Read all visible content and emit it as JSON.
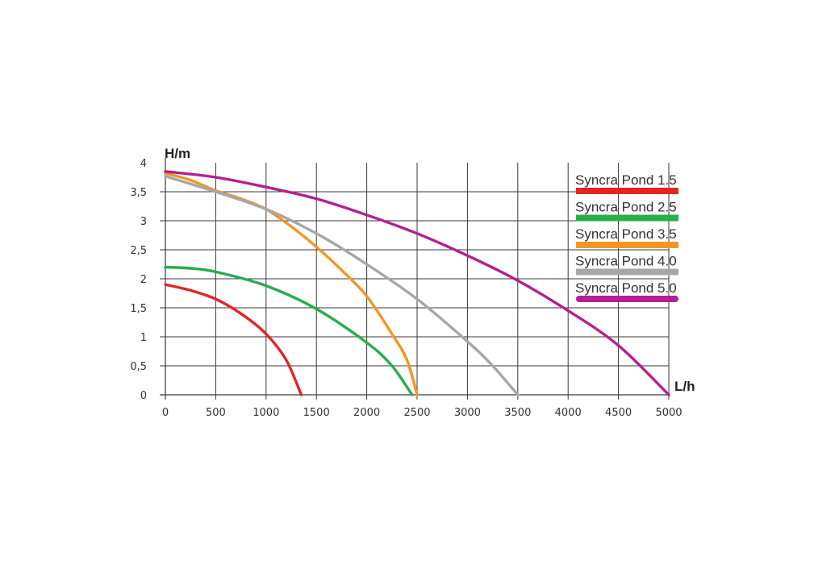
{
  "chart_data": {
    "type": "line",
    "ylabel": "H/m",
    "xlabel": "L/h",
    "xlim": [
      0,
      5000
    ],
    "ylim": [
      0,
      4
    ],
    "grid": true,
    "legend_position": "top-right",
    "x_ticks": [
      "0",
      "500",
      "1000",
      "1500",
      "2000",
      "2500",
      "3000",
      "3500",
      "4000",
      "4500",
      "5000"
    ],
    "y_ticks": [
      {
        "value": 0,
        "label": "0"
      },
      {
        "value": 0.5,
        "label": "0,5"
      },
      {
        "value": 1,
        "label": "1"
      },
      {
        "value": 1.5,
        "label": "1,5"
      },
      {
        "value": 2,
        "label": "2"
      },
      {
        "value": 2.5,
        "label": "2,5"
      },
      {
        "value": 3,
        "label": "3"
      },
      {
        "value": 3.5,
        "label": "3,5"
      },
      {
        "value": 4,
        "label": "4"
      }
    ],
    "series": [
      {
        "name": "Syncra Pond 1.5",
        "color": "#e32427",
        "points": [
          [
            0,
            1.9
          ],
          [
            250,
            1.8
          ],
          [
            500,
            1.65
          ],
          [
            750,
            1.4
          ],
          [
            1000,
            1.05
          ],
          [
            1200,
            0.6
          ],
          [
            1350,
            0.0
          ]
        ]
      },
      {
        "name": "Syncra Pond 2.5",
        "color": "#27ae4a",
        "points": [
          [
            0,
            2.2
          ],
          [
            250,
            2.18
          ],
          [
            500,
            2.12
          ],
          [
            1000,
            1.88
          ],
          [
            1500,
            1.48
          ],
          [
            2000,
            0.9
          ],
          [
            2250,
            0.5
          ],
          [
            2450,
            0.0
          ]
        ]
      },
      {
        "name": "Syncra Pond 3.5",
        "color": "#f39623",
        "points": [
          [
            0,
            3.82
          ],
          [
            250,
            3.7
          ],
          [
            500,
            3.52
          ],
          [
            750,
            3.38
          ],
          [
            1000,
            3.2
          ],
          [
            1250,
            2.9
          ],
          [
            1500,
            2.55
          ],
          [
            1750,
            2.15
          ],
          [
            2000,
            1.7
          ],
          [
            2250,
            1.05
          ],
          [
            2400,
            0.6
          ],
          [
            2500,
            0.0
          ]
        ]
      },
      {
        "name": "Syncra Pond 4.0",
        "color": "#a7a7a9",
        "points": [
          [
            0,
            3.77
          ],
          [
            500,
            3.5
          ],
          [
            1000,
            3.2
          ],
          [
            1500,
            2.78
          ],
          [
            2000,
            2.25
          ],
          [
            2500,
            1.65
          ],
          [
            3000,
            0.92
          ],
          [
            3250,
            0.5
          ],
          [
            3500,
            0.0
          ]
        ]
      },
      {
        "name": "Syncra Pond 5.0",
        "color": "#b41f93",
        "points": [
          [
            0,
            3.85
          ],
          [
            500,
            3.75
          ],
          [
            1000,
            3.58
          ],
          [
            1500,
            3.38
          ],
          [
            2000,
            3.1
          ],
          [
            2500,
            2.78
          ],
          [
            3000,
            2.4
          ],
          [
            3500,
            1.97
          ],
          [
            4000,
            1.45
          ],
          [
            4500,
            0.85
          ],
          [
            5000,
            0.0
          ]
        ]
      }
    ]
  }
}
